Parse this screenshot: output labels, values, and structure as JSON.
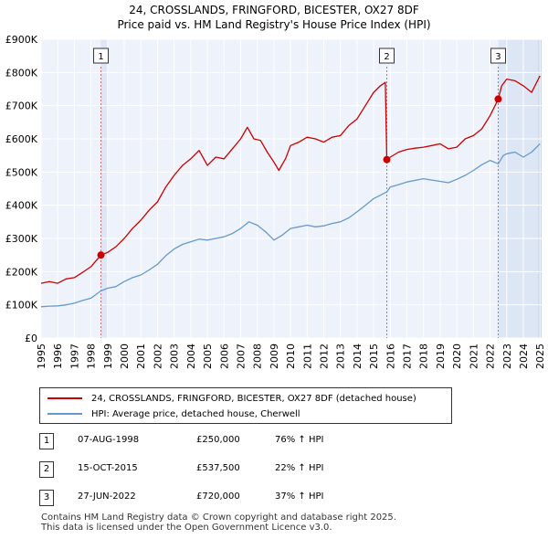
{
  "chart_data": {
    "type": "line",
    "title": "24, CROSSLANDS, FRINGFORD, BICESTER, OX27 8DF",
    "subtitle": "Price paid vs. HM Land Registry's House Price Index (HPI)",
    "y_ticks": [
      "£0",
      "£100K",
      "£200K",
      "£300K",
      "£400K",
      "£500K",
      "£600K",
      "£700K",
      "£800K",
      "£900K"
    ],
    "y_tick_values": [
      0,
      100000,
      200000,
      300000,
      400000,
      500000,
      600000,
      700000,
      800000,
      900000
    ],
    "ylim": [
      0,
      900000
    ],
    "xlim": [
      1995.0,
      2025.1
    ],
    "x_ticks": [
      "1995",
      "1996",
      "1997",
      "1998",
      "1999",
      "2000",
      "2001",
      "2002",
      "2003",
      "2004",
      "2005",
      "2006",
      "2007",
      "2008",
      "2009",
      "2010",
      "2011",
      "2012",
      "2013",
      "2014",
      "2015",
      "2016",
      "2017",
      "2018",
      "2019",
      "2020",
      "2021",
      "2022",
      "2023",
      "2024",
      "2025"
    ],
    "grid": true,
    "series": [
      {
        "name": "24, CROSSLANDS, FRINGFORD, BICESTER, OX27 8DF (detached house)",
        "color": "#cc0000",
        "x": [
          1995.0,
          1995.5,
          1996.0,
          1996.5,
          1997.0,
          1997.5,
          1998.0,
          1998.6,
          1999.0,
          1999.5,
          2000.0,
          2000.5,
          2001.0,
          2001.5,
          2002.0,
          2002.5,
          2003.0,
          2003.5,
          2004.0,
          2004.5,
          2005.0,
          2005.5,
          2006.0,
          2006.5,
          2007.0,
          2007.4,
          2007.8,
          2008.2,
          2008.6,
          2009.0,
          2009.3,
          2009.7,
          2010.0,
          2010.5,
          2011.0,
          2011.5,
          2012.0,
          2012.5,
          2013.0,
          2013.5,
          2014.0,
          2014.5,
          2015.0,
          2015.4,
          2015.7,
          2015.79,
          2016.0,
          2016.5,
          2017.0,
          2017.5,
          2018.0,
          2018.5,
          2019.0,
          2019.5,
          2020.0,
          2020.5,
          2021.0,
          2021.5,
          2022.0,
          2022.3,
          2022.49,
          2022.7,
          2023.0,
          2023.5,
          2024.0,
          2024.5,
          2025.0
        ],
        "values": [
          165000,
          170000,
          165000,
          178000,
          182000,
          198000,
          215000,
          250000,
          258000,
          275000,
          300000,
          330000,
          355000,
          385000,
          410000,
          455000,
          490000,
          520000,
          540000,
          565000,
          520000,
          545000,
          540000,
          570000,
          600000,
          635000,
          600000,
          595000,
          560000,
          530000,
          505000,
          540000,
          580000,
          590000,
          605000,
          600000,
          590000,
          605000,
          610000,
          640000,
          660000,
          700000,
          740000,
          760000,
          770000,
          537500,
          545000,
          560000,
          568000,
          572000,
          575000,
          580000,
          585000,
          570000,
          575000,
          600000,
          610000,
          630000,
          670000,
          700000,
          720000,
          760000,
          780000,
          775000,
          760000,
          740000,
          790000
        ]
      },
      {
        "name": "HPI: Average price, detached house, Cherwell",
        "color": "#6699cc",
        "x": [
          1995.0,
          1995.5,
          1996.0,
          1996.5,
          1997.0,
          1997.5,
          1998.0,
          1998.6,
          1999.0,
          1999.5,
          2000.0,
          2000.5,
          2001.0,
          2001.5,
          2002.0,
          2002.5,
          2003.0,
          2003.5,
          2004.0,
          2004.5,
          2005.0,
          2005.5,
          2006.0,
          2006.5,
          2007.0,
          2007.5,
          2008.0,
          2008.5,
          2009.0,
          2009.5,
          2010.0,
          2010.5,
          2011.0,
          2011.5,
          2012.0,
          2012.5,
          2013.0,
          2013.5,
          2014.0,
          2014.5,
          2015.0,
          2015.79,
          2016.0,
          2016.5,
          2017.0,
          2017.5,
          2018.0,
          2018.5,
          2019.0,
          2019.5,
          2020.0,
          2020.5,
          2021.0,
          2021.5,
          2022.0,
          2022.49,
          2022.8,
          2023.0,
          2023.5,
          2024.0,
          2024.5,
          2025.0
        ],
        "values": [
          94000,
          96000,
          97000,
          100000,
          105000,
          113000,
          120000,
          142000,
          150000,
          155000,
          170000,
          182000,
          190000,
          205000,
          222000,
          248000,
          268000,
          282000,
          290000,
          298000,
          295000,
          300000,
          305000,
          315000,
          330000,
          350000,
          340000,
          320000,
          295000,
          310000,
          330000,
          335000,
          340000,
          335000,
          338000,
          345000,
          350000,
          362000,
          380000,
          400000,
          420000,
          440000,
          455000,
          462000,
          470000,
          475000,
          480000,
          476000,
          472000,
          468000,
          478000,
          490000,
          505000,
          522000,
          535000,
          525000,
          550000,
          555000,
          560000,
          545000,
          560000,
          585000
        ]
      }
    ],
    "annotations": [
      {
        "label": "1",
        "x": 1998.6,
        "value": 250000
      },
      {
        "label": "2",
        "x": 2015.79,
        "value": 537500
      },
      {
        "label": "3",
        "x": 2022.49,
        "value": 720000
      }
    ]
  },
  "legend": {
    "entries": [
      {
        "label": "24, CROSSLANDS, FRINGFORD, BICESTER, OX27 8DF (detached house)",
        "color": "#cc0000"
      },
      {
        "label": "HPI: Average price, detached house, Cherwell",
        "color": "#6699cc"
      }
    ]
  },
  "transactions": [
    {
      "num": "1",
      "date": "07-AUG-1998",
      "price": "£250,000",
      "hpi": "76% ↑ HPI"
    },
    {
      "num": "2",
      "date": "15-OCT-2015",
      "price": "£537,500",
      "hpi": "22% ↑ HPI"
    },
    {
      "num": "3",
      "date": "27-JUN-2022",
      "price": "£720,000",
      "hpi": "37% ↑ HPI"
    }
  ],
  "footer": {
    "line1": "Contains HM Land Registry data © Crown copyright and database right 2025.",
    "line2": "This data is licensed under the Open Government Licence v3.0."
  },
  "colors": {
    "plot_bg": "#eef2fa",
    "shade": "#dde6f5",
    "grid": "#ffffff",
    "marker_line": "#e06666"
  }
}
